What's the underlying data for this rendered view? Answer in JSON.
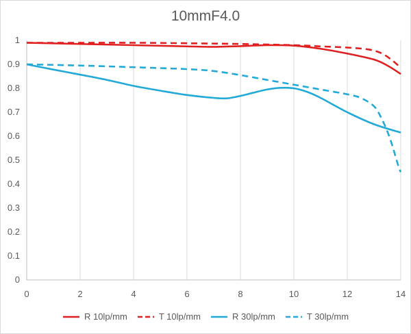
{
  "chart_data": {
    "type": "line",
    "title": "10mmF4.0",
    "xlabel": "",
    "ylabel": "",
    "xlim": [
      0,
      14
    ],
    "ylim": [
      0,
      1
    ],
    "xticks": [
      "0",
      "2",
      "4",
      "6",
      "8",
      "10",
      "12",
      "14"
    ],
    "yticks": [
      "0",
      "0.1",
      "0.2",
      "0.3",
      "0.4",
      "0.5",
      "0.6",
      "0.7",
      "0.8",
      "0.9",
      "1"
    ],
    "grid": "vertical",
    "legend_position": "bottom",
    "series": [
      {
        "name": "R 10lp/mm",
        "color": "#e02020",
        "dash": "solid",
        "x": [
          0,
          2,
          4,
          6,
          7,
          8,
          9,
          10,
          11,
          12,
          13,
          13.5,
          14
        ],
        "y": [
          0.99,
          0.985,
          0.98,
          0.975,
          0.973,
          0.976,
          0.98,
          0.978,
          0.965,
          0.945,
          0.92,
          0.895,
          0.86
        ]
      },
      {
        "name": "T 10lp/mm",
        "color": "#e02020",
        "dash": "dashed",
        "x": [
          0,
          2,
          4,
          6,
          8,
          10,
          11,
          12,
          12.8,
          13.3,
          13.7,
          14
        ],
        "y": [
          0.99,
          0.99,
          0.99,
          0.988,
          0.985,
          0.98,
          0.975,
          0.97,
          0.962,
          0.945,
          0.915,
          0.885
        ]
      },
      {
        "name": "R 30lp/mm",
        "color": "#21a9d8",
        "dash": "solid",
        "x": [
          0,
          1,
          2,
          3,
          4,
          5,
          6,
          7,
          7.5,
          8,
          8.5,
          9,
          9.5,
          10,
          10.5,
          11,
          12,
          13,
          14
        ],
        "y": [
          0.9,
          0.878,
          0.857,
          0.835,
          0.81,
          0.79,
          0.772,
          0.76,
          0.758,
          0.768,
          0.782,
          0.795,
          0.802,
          0.8,
          0.785,
          0.76,
          0.7,
          0.65,
          0.615
        ]
      },
      {
        "name": "T 30lp/mm",
        "color": "#21a9d8",
        "dash": "dashed",
        "x": [
          0,
          2,
          4,
          6,
          7,
          8,
          9,
          10,
          11,
          12,
          12.5,
          13,
          13.3,
          13.6,
          13.9,
          14
        ],
        "y": [
          0.9,
          0.895,
          0.888,
          0.88,
          0.872,
          0.855,
          0.835,
          0.815,
          0.795,
          0.775,
          0.76,
          0.725,
          0.67,
          0.59,
          0.48,
          0.45
        ]
      }
    ]
  }
}
